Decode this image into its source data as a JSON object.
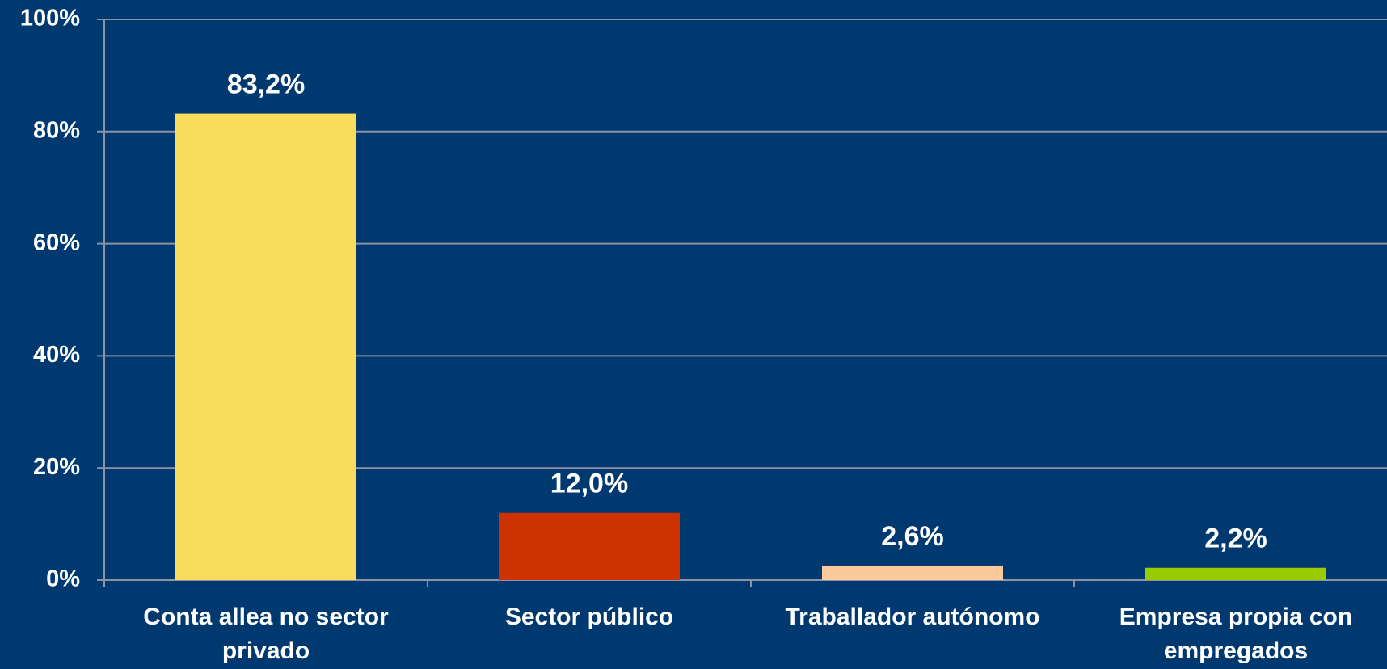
{
  "chart_data": {
    "type": "bar",
    "categories": [
      "Conta allea no sector privado",
      "Sector público",
      "Traballador autónomo",
      "Empresa propia con empregados"
    ],
    "values": [
      83.2,
      12.0,
      2.6,
      2.2
    ],
    "value_labels": [
      "83,2%",
      "12,0%",
      "2,6%",
      "2,2%"
    ],
    "colors": [
      "#f9dc5c",
      "#cc3300",
      "#fbc99a",
      "#99cc00"
    ],
    "ylim": [
      0,
      100
    ],
    "yticks": [
      {
        "value": 0,
        "label": "0%"
      },
      {
        "value": 20,
        "label": "20%"
      },
      {
        "value": 40,
        "label": "40%"
      },
      {
        "value": 60,
        "label": "60%"
      },
      {
        "value": 80,
        "label": "80%"
      },
      {
        "value": 100,
        "label": "100%"
      }
    ],
    "grid": true
  }
}
